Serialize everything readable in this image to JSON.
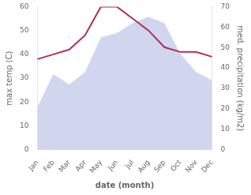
{
  "chart_data": {
    "type": "line",
    "categories": [
      "Jan",
      "Feb",
      "Mar",
      "Apr",
      "May",
      "Jun",
      "Jul",
      "Aug",
      "Sep",
      "Oct",
      "Nov",
      "Dec"
    ],
    "xlabel": "date (month)",
    "ylabel": "max temp (C)",
    "y2label": "med. precipitation (kg/m2)",
    "series": [
      {
        "type": "area",
        "color": "#aab4e0",
        "axis": "y2",
        "values": [
          21,
          37,
          32,
          38,
          55,
          57,
          62,
          65,
          62,
          47,
          38,
          34
        ]
      },
      {
        "type": "line",
        "color": "#b03050",
        "values": [
          38,
          40,
          42,
          48,
          60,
          60,
          55,
          50,
          43,
          41,
          41,
          39
        ]
      }
    ],
    "ylim": [
      0,
      60
    ],
    "yticks": [
      0,
      10,
      20,
      30,
      40,
      50,
      60
    ],
    "y2lim": [
      0,
      70
    ],
    "y2ticks": [
      0,
      10,
      20,
      30,
      40,
      50,
      60,
      70
    ],
    "grid": false
  }
}
